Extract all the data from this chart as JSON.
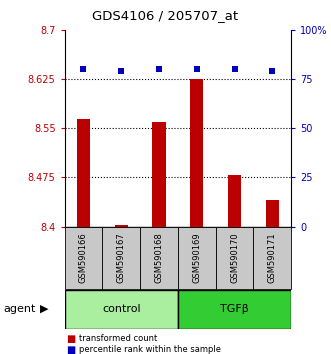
{
  "title": "GDS4106 / 205707_at",
  "categories": [
    "GSM590166",
    "GSM590167",
    "GSM590168",
    "GSM590169",
    "GSM590170",
    "GSM590171"
  ],
  "bar_values": [
    8.565,
    8.403,
    8.56,
    8.625,
    8.478,
    8.44
  ],
  "percentile_values": [
    80,
    79,
    80,
    80,
    80,
    79
  ],
  "ylim_left": [
    8.4,
    8.7
  ],
  "ylim_right": [
    0,
    100
  ],
  "yticks_left": [
    8.4,
    8.475,
    8.55,
    8.625,
    8.7
  ],
  "ytick_labels_left": [
    "8.4",
    "8.475",
    "8.55",
    "8.625",
    "8.7"
  ],
  "yticks_right": [
    0,
    25,
    50,
    75,
    100
  ],
  "ytick_labels_right": [
    "0",
    "25",
    "50",
    "75",
    "100%"
  ],
  "bar_color": "#bb0000",
  "dot_color": "#0000bb",
  "control_label": "control",
  "tgfb_label": "TGFβ",
  "agent_label": "agent",
  "legend_bar_label": "transformed count",
  "legend_dot_label": "percentile rank within the sample",
  "control_color": "#aaeea0",
  "tgfb_color": "#33cc33",
  "xlabel_area_color": "#c8c8c8",
  "bar_base": 8.4,
  "grid_ticks": [
    8.475,
    8.55,
    8.625
  ]
}
